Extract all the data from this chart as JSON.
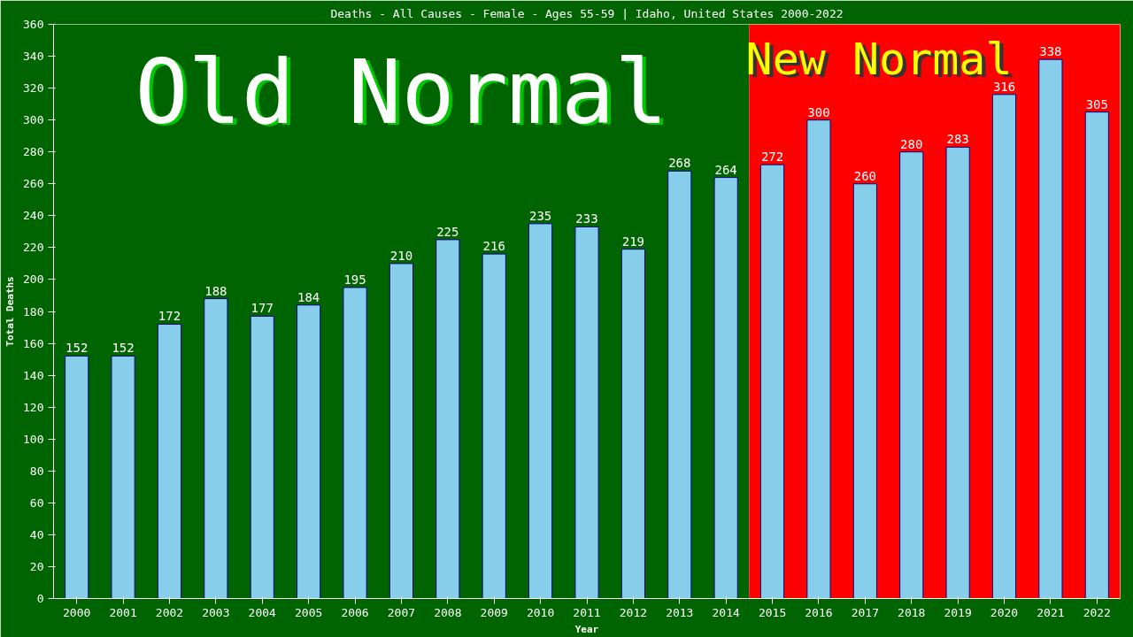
{
  "chart_data": {
    "type": "bar",
    "title": "Deaths - All Causes - Female - Ages 55-59 | Idaho, United States 2000-2022",
    "xlabel": "Year",
    "ylabel": "Total Deaths",
    "categories": [
      "2000",
      "2001",
      "2002",
      "2003",
      "2004",
      "2005",
      "2006",
      "2007",
      "2008",
      "2009",
      "2010",
      "2011",
      "2012",
      "2013",
      "2014",
      "2015",
      "2016",
      "2017",
      "2018",
      "2019",
      "2020",
      "2021",
      "2022"
    ],
    "values": [
      152,
      152,
      172,
      188,
      177,
      184,
      195,
      210,
      225,
      216,
      235,
      233,
      219,
      268,
      264,
      272,
      300,
      260,
      280,
      283,
      316,
      338,
      305
    ],
    "color": "#87ceeb",
    "ylim": [
      0,
      360
    ],
    "yticks": [
      0,
      20,
      40,
      60,
      80,
      100,
      120,
      140,
      160,
      180,
      200,
      220,
      240,
      260,
      280,
      300,
      320,
      340,
      360
    ],
    "grid": false,
    "data_labels": true,
    "bands": [
      {
        "axis": "x",
        "from": "2000",
        "to": "2014",
        "label": "Old Normal",
        "color": "#006400"
      },
      {
        "axis": "x",
        "from": "2015",
        "to": "2022",
        "label": "New Normal",
        "color": "#ff0000"
      }
    ]
  }
}
